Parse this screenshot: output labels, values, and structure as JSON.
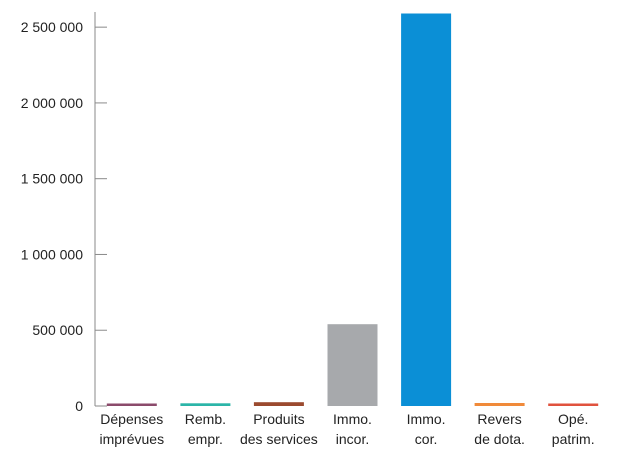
{
  "chart_data": {
    "type": "bar",
    "title": "",
    "xlabel": "",
    "ylabel": "",
    "grid": false,
    "legend": "none",
    "ylim": [
      0,
      2600000
    ],
    "yticks": [
      {
        "value": 0,
        "label": "0"
      },
      {
        "value": 500000,
        "label": "500 000"
      },
      {
        "value": 1000000,
        "label": "1 000 000"
      },
      {
        "value": 1500000,
        "label": "1 500 000"
      },
      {
        "value": 2000000,
        "label": "2 000 000"
      },
      {
        "value": 2500000,
        "label": "2 500 000"
      }
    ],
    "categories": [
      [
        "Dépenses",
        "imprévues"
      ],
      [
        "Remb.",
        "empr."
      ],
      [
        "Produits",
        "des services"
      ],
      [
        "Immo.",
        "incor."
      ],
      [
        "Immo.",
        "cor."
      ],
      [
        "Revers",
        "de dota."
      ],
      [
        "Opé.",
        "patrim."
      ]
    ],
    "values": [
      15000,
      18000,
      25000,
      540000,
      2590000,
      20000,
      10000
    ],
    "colors": [
      "#8b4a6b",
      "#2bb5a8",
      "#9b4a2f",
      "#a7a9ac",
      "#0b8fd6",
      "#f08a3a",
      "#e0523e"
    ]
  }
}
